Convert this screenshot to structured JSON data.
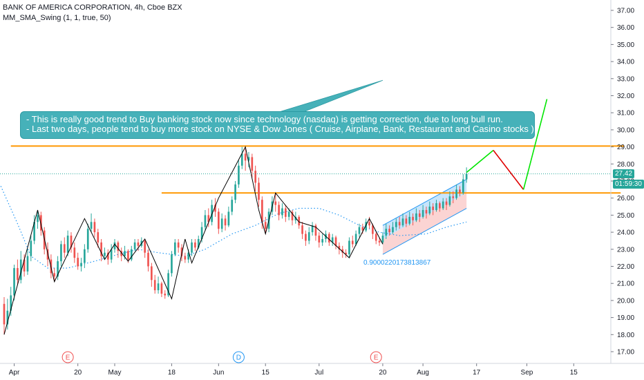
{
  "legend": {
    "title": "BANK OF AMERICA CORPORATION, 4h, Cboe BZX",
    "indicator": "MM_SMA_Swing (1, 1, true, 50)"
  },
  "annotation": {
    "line1": "- This is really good trend to Buy banking stock now since technology (nasdaq) is getting correction, due to long bull run.",
    "line2": "- Last two days, people tend to buy more stock on NYSE & Dow Jones ( Cruise, Airplane, Bank, Restaurant and Casino stocks )"
  },
  "price_tag": {
    "price": "27.42",
    "countdown": "01:59:30"
  },
  "low_label": "0.9000220173813867",
  "events": [
    {
      "letter": "E",
      "x_day": 17,
      "color": "#f05050"
    },
    {
      "letter": "D",
      "x_day": 68,
      "color": "#2196f3"
    },
    {
      "letter": "E",
      "x_day": 109,
      "color": "#f05050"
    }
  ],
  "colors": {
    "up": "#26a69a",
    "down": "#ef5350",
    "level": "#ff9800",
    "sma": "#2196f3",
    "zigzag": "#000000",
    "forecast_up": "#00e600",
    "forecast_down": "#e00000",
    "price_line": "#26a69a"
  },
  "chart_data": {
    "type": "candlestick",
    "title": "BANK OF AMERICA CORPORATION, 4h, Cboe BZX",
    "xlabel": "",
    "ylabel": "",
    "ylim": [
      16.3,
      37.6
    ],
    "x_day_range": [
      -3,
      137
    ],
    "x_ticks": [
      {
        "label": "Apr",
        "day": 1
      },
      {
        "label": "20",
        "day": 20
      },
      {
        "label": "May",
        "day": 31
      },
      {
        "label": "18",
        "day": 48
      },
      {
        "label": "Jun",
        "day": 62
      },
      {
        "label": "15",
        "day": 76
      },
      {
        "label": "Jul",
        "day": 92
      },
      {
        "label": "20",
        "day": 111
      },
      {
        "label": "Aug",
        "day": 123
      },
      {
        "label": "17",
        "day": 139
      },
      {
        "label": "Sep",
        "day": 154
      },
      {
        "label": "15",
        "day": 168
      }
    ],
    "y_ticks": [
      17,
      18,
      19,
      20,
      21,
      22,
      23,
      24,
      25,
      26,
      27,
      28,
      29,
      30,
      31,
      32,
      33,
      34,
      35,
      36,
      37
    ],
    "grid": false,
    "zigzag": [
      {
        "day": -2,
        "price": 18.0
      },
      {
        "day": 8,
        "price": 25.3
      },
      {
        "day": 13,
        "price": 21.1
      },
      {
        "day": 22,
        "price": 24.8
      },
      {
        "day": 28,
        "price": 22.4
      },
      {
        "day": 31,
        "price": 23.3
      },
      {
        "day": 35,
        "price": 22.3
      },
      {
        "day": 40,
        "price": 23.6
      },
      {
        "day": 48,
        "price": 20.1
      },
      {
        "day": 52,
        "price": 23.6
      },
      {
        "day": 54,
        "price": 22.2
      },
      {
        "day": 62,
        "price": 26.0
      },
      {
        "day": 70,
        "price": 29.0
      },
      {
        "day": 74,
        "price": 25.3
      },
      {
        "day": 76,
        "price": 23.9
      },
      {
        "day": 79,
        "price": 26.3
      },
      {
        "day": 86,
        "price": 24.6
      },
      {
        "day": 91,
        "price": 24.3
      },
      {
        "day": 101,
        "price": 22.5
      },
      {
        "day": 107,
        "price": 24.8
      },
      {
        "day": 111,
        "price": 23.3
      }
    ],
    "sma": [
      {
        "day": -3,
        "price": 26.7
      },
      {
        "day": 2,
        "price": 24.5
      },
      {
        "day": 6,
        "price": 22.6
      },
      {
        "day": 11,
        "price": 21.9
      },
      {
        "day": 17,
        "price": 21.9
      },
      {
        "day": 25,
        "price": 22.3
      },
      {
        "day": 32,
        "price": 22.7
      },
      {
        "day": 38,
        "price": 23.0
      },
      {
        "day": 44,
        "price": 22.8
      },
      {
        "day": 52,
        "price": 22.6
      },
      {
        "day": 58,
        "price": 23.0
      },
      {
        "day": 66,
        "price": 23.9
      },
      {
        "day": 73,
        "price": 24.4
      },
      {
        "day": 80,
        "price": 25.1
      },
      {
        "day": 86,
        "price": 25.4
      },
      {
        "day": 92,
        "price": 25.4
      },
      {
        "day": 98,
        "price": 25.0
      },
      {
        "day": 104,
        "price": 24.4
      },
      {
        "day": 110,
        "price": 24.0
      },
      {
        "day": 116,
        "price": 23.8
      },
      {
        "day": 124,
        "price": 23.9
      },
      {
        "day": 130,
        "price": 24.3
      },
      {
        "day": 136,
        "price": 24.6
      }
    ],
    "levels": [
      {
        "price": 29.05,
        "day_start": 0,
        "day_end": 183
      },
      {
        "price": 26.3,
        "day_start": 45,
        "day_end": 182
      }
    ],
    "current_price": 27.42,
    "channel": {
      "upper_start": {
        "day": 111,
        "price": 24.4
      },
      "upper_end": {
        "day": 136,
        "price": 27.1
      },
      "mid_start": {
        "day": 111,
        "price": 23.6
      },
      "mid_end": {
        "day": 136,
        "price": 26.3
      },
      "lower_start": {
        "day": 111,
        "price": 22.7
      },
      "lower_end": {
        "day": 136,
        "price": 25.4
      }
    },
    "trend_line": {
      "start": {
        "day": 81,
        "price": 31.0
      },
      "end": {
        "day": 111,
        "price": 32.9
      }
    },
    "forecast": [
      {
        "day": 136,
        "price": 27.5
      },
      {
        "day": 144,
        "price": 28.8
      },
      {
        "day": 153,
        "price": 26.5
      },
      {
        "day": 160,
        "price": 31.8
      }
    ],
    "candles": [
      [
        -2,
        19.8,
        18.6,
        20.2,
        18.0
      ],
      [
        -1,
        18.6,
        19.4,
        20.1,
        18.3
      ],
      [
        0,
        19.4,
        20.3,
        20.8,
        19.1
      ],
      [
        1,
        20.3,
        21.9,
        22.1,
        20.0
      ],
      [
        2,
        21.9,
        21.2,
        22.4,
        20.9
      ],
      [
        3,
        21.2,
        22.4,
        22.9,
        21.0
      ],
      [
        4,
        22.4,
        21.7,
        22.7,
        21.4
      ],
      [
        5,
        21.7,
        22.6,
        23.0,
        21.5
      ],
      [
        6,
        22.6,
        23.5,
        23.8,
        22.3
      ],
      [
        7,
        23.5,
        24.6,
        25.0,
        23.3
      ],
      [
        8,
        24.6,
        25.0,
        25.3,
        24.2
      ],
      [
        9,
        25.0,
        24.1,
        25.2,
        23.8
      ],
      [
        10,
        24.1,
        23.0,
        24.3,
        22.7
      ],
      [
        11,
        23.0,
        22.4,
        23.4,
        22.0
      ],
      [
        12,
        22.4,
        21.6,
        22.7,
        21.3
      ],
      [
        13,
        21.6,
        21.4,
        21.9,
        21.1
      ],
      [
        14,
        21.4,
        22.3,
        22.6,
        21.2
      ],
      [
        15,
        22.3,
        23.3,
        23.5,
        22.0
      ],
      [
        16,
        23.3,
        22.8,
        23.7,
        22.5
      ],
      [
        17,
        22.8,
        23.8,
        24.1,
        22.6
      ],
      [
        18,
        23.8,
        23.1,
        24.0,
        22.8
      ],
      [
        19,
        23.1,
        22.5,
        23.4,
        22.2
      ],
      [
        20,
        22.5,
        22.0,
        22.8,
        21.8
      ],
      [
        21,
        22.0,
        22.2,
        22.5,
        21.7
      ],
      [
        22,
        22.2,
        23.0,
        23.3,
        21.9
      ],
      [
        23,
        23.0,
        24.2,
        24.5,
        22.8
      ],
      [
        24,
        24.2,
        24.6,
        25.1,
        24.0
      ],
      [
        25,
        24.6,
        24.0,
        24.8,
        23.7
      ],
      [
        26,
        24.0,
        23.4,
        24.2,
        23.1
      ],
      [
        27,
        23.4,
        22.6,
        23.6,
        22.3
      ],
      [
        28,
        22.6,
        22.8,
        23.1,
        22.4
      ],
      [
        29,
        22.8,
        22.4,
        23.0,
        22.1
      ],
      [
        30,
        22.4,
        23.0,
        23.3,
        22.2
      ],
      [
        31,
        23.0,
        23.4,
        23.6,
        22.8
      ],
      [
        32,
        23.4,
        22.9,
        23.5,
        22.5
      ],
      [
        33,
        22.9,
        22.6,
        23.1,
        22.3
      ],
      [
        34,
        22.6,
        22.9,
        23.2,
        22.4
      ],
      [
        35,
        22.9,
        22.4,
        23.0,
        22.2
      ],
      [
        36,
        22.4,
        23.0,
        23.2,
        22.3
      ],
      [
        37,
        23.0,
        23.4,
        23.6,
        22.9
      ],
      [
        38,
        23.4,
        23.2,
        23.6,
        22.9
      ],
      [
        39,
        23.2,
        23.5,
        23.7,
        23.1
      ],
      [
        40,
        23.5,
        22.8,
        23.6,
        22.5
      ],
      [
        41,
        22.8,
        22.0,
        23.0,
        21.7
      ],
      [
        42,
        22.0,
        21.2,
        22.2,
        20.8
      ],
      [
        43,
        21.2,
        20.6,
        21.5,
        20.4
      ],
      [
        44,
        20.6,
        21.0,
        21.4,
        20.4
      ],
      [
        45,
        21.0,
        20.4,
        21.1,
        20.2
      ],
      [
        46,
        20.4,
        20.3,
        20.6,
        20.1
      ],
      [
        47,
        20.3,
        21.6,
        21.8,
        20.2
      ],
      [
        48,
        21.6,
        22.7,
        22.9,
        21.4
      ],
      [
        49,
        22.7,
        23.4,
        23.6,
        22.6
      ],
      [
        50,
        23.4,
        23.1,
        23.6,
        22.8
      ],
      [
        51,
        23.1,
        22.6,
        23.3,
        22.3
      ],
      [
        52,
        22.6,
        22.4,
        22.8,
        22.2
      ],
      [
        53,
        22.4,
        22.8,
        23.0,
        22.2
      ],
      [
        54,
        22.8,
        23.4,
        23.6,
        22.6
      ],
      [
        55,
        23.4,
        23.1,
        23.6,
        22.9
      ],
      [
        56,
        23.1,
        23.6,
        23.8,
        23.0
      ],
      [
        57,
        23.6,
        24.3,
        24.6,
        23.4
      ],
      [
        58,
        24.3,
        25.0,
        25.3,
        24.1
      ],
      [
        59,
        25.0,
        24.6,
        25.4,
        24.3
      ],
      [
        60,
        24.6,
        25.6,
        25.9,
        24.4
      ],
      [
        61,
        25.6,
        25.2,
        26.0,
        24.9
      ],
      [
        62,
        25.2,
        24.2,
        25.4,
        23.9
      ],
      [
        63,
        24.2,
        24.8,
        25.1,
        24.0
      ],
      [
        64,
        24.8,
        24.4,
        25.0,
        24.1
      ],
      [
        65,
        24.4,
        25.2,
        25.5,
        24.3
      ],
      [
        66,
        25.2,
        25.9,
        26.1,
        25.0
      ],
      [
        67,
        25.9,
        26.8,
        27.0,
        25.7
      ],
      [
        68,
        26.8,
        27.9,
        28.2,
        26.6
      ],
      [
        69,
        27.9,
        28.6,
        29.0,
        27.7
      ],
      [
        70,
        28.6,
        28.2,
        28.9,
        27.6
      ],
      [
        71,
        28.2,
        28.4,
        28.7,
        27.8
      ],
      [
        72,
        28.4,
        27.6,
        28.6,
        27.2
      ],
      [
        73,
        27.6,
        26.9,
        27.9,
        26.4
      ],
      [
        74,
        26.9,
        25.9,
        27.2,
        25.5
      ],
      [
        75,
        25.9,
        24.6,
        26.1,
        24.2
      ],
      [
        76,
        24.6,
        24.2,
        24.9,
        23.9
      ],
      [
        77,
        24.2,
        25.2,
        25.4,
        24.0
      ],
      [
        78,
        25.2,
        25.8,
        26.1,
        25.0
      ],
      [
        79,
        25.8,
        25.6,
        26.3,
        25.2
      ],
      [
        80,
        25.6,
        25.0,
        25.8,
        24.7
      ],
      [
        81,
        25.0,
        25.4,
        25.7,
        24.8
      ],
      [
        82,
        25.4,
        24.9,
        25.6,
        24.6
      ],
      [
        83,
        24.9,
        25.2,
        25.4,
        24.7
      ],
      [
        84,
        25.2,
        24.7,
        25.3,
        24.4
      ],
      [
        85,
        24.7,
        24.9,
        25.2,
        24.5
      ],
      [
        86,
        24.9,
        24.4,
        25.0,
        24.2
      ],
      [
        87,
        24.4,
        23.9,
        24.6,
        23.6
      ],
      [
        88,
        23.9,
        23.5,
        24.1,
        23.2
      ],
      [
        89,
        23.5,
        24.0,
        24.3,
        23.3
      ],
      [
        90,
        24.0,
        24.4,
        24.6,
        23.8
      ],
      [
        91,
        24.4,
        23.8,
        24.5,
        23.5
      ],
      [
        92,
        23.8,
        23.4,
        24.0,
        23.1
      ],
      [
        93,
        23.4,
        23.6,
        23.9,
        23.2
      ],
      [
        94,
        23.6,
        23.9,
        24.1,
        23.4
      ],
      [
        95,
        23.9,
        23.4,
        24.0,
        23.2
      ],
      [
        96,
        23.4,
        23.7,
        23.9,
        23.2
      ],
      [
        97,
        23.7,
        23.2,
        23.8,
        23.0
      ],
      [
        98,
        23.2,
        23.0,
        23.4,
        22.7
      ],
      [
        99,
        23.0,
        22.8,
        23.2,
        22.5
      ],
      [
        100,
        22.8,
        22.7,
        23.0,
        22.5
      ],
      [
        101,
        22.7,
        23.5,
        23.7,
        22.5
      ],
      [
        102,
        23.5,
        23.3,
        23.8,
        23.1
      ],
      [
        103,
        23.3,
        23.9,
        24.1,
        23.2
      ],
      [
        104,
        23.9,
        24.3,
        24.5,
        23.7
      ],
      [
        105,
        24.3,
        24.1,
        24.5,
        23.9
      ],
      [
        106,
        24.1,
        24.6,
        24.8,
        24.0
      ],
      [
        107,
        24.6,
        24.4,
        24.9,
        24.2
      ],
      [
        108,
        24.4,
        23.9,
        24.5,
        23.6
      ],
      [
        109,
        23.9,
        23.5,
        24.0,
        23.3
      ],
      [
        110,
        23.5,
        23.4,
        23.7,
        23.2
      ],
      [
        111,
        23.4,
        23.8,
        24.0,
        23.3
      ],
      [
        112,
        23.8,
        24.2,
        24.5,
        23.6
      ],
      [
        113,
        24.2,
        24.0,
        24.4,
        23.8
      ],
      [
        114,
        24.0,
        24.3,
        24.6,
        23.9
      ],
      [
        115,
        24.3,
        24.6,
        24.8,
        24.1
      ],
      [
        116,
        24.6,
        24.4,
        24.9,
        24.2
      ],
      [
        117,
        24.4,
        24.8,
        25.1,
        24.3
      ],
      [
        118,
        24.8,
        24.5,
        25.0,
        24.3
      ],
      [
        119,
        24.5,
        24.9,
        25.2,
        24.4
      ],
      [
        120,
        24.9,
        24.7,
        25.1,
        24.4
      ],
      [
        121,
        24.7,
        25.1,
        25.4,
        24.6
      ],
      [
        122,
        25.1,
        24.9,
        25.3,
        24.6
      ],
      [
        123,
        24.9,
        25.3,
        25.6,
        24.8
      ],
      [
        124,
        25.3,
        25.1,
        25.5,
        24.8
      ],
      [
        125,
        25.1,
        25.5,
        25.8,
        25.0
      ],
      [
        126,
        25.5,
        25.3,
        25.7,
        25.0
      ],
      [
        127,
        25.3,
        25.7,
        25.9,
        25.2
      ],
      [
        128,
        25.7,
        25.4,
        25.8,
        25.2
      ],
      [
        129,
        25.4,
        25.8,
        26.0,
        25.3
      ],
      [
        130,
        25.8,
        25.6,
        26.0,
        25.3
      ],
      [
        131,
        25.6,
        26.1,
        26.4,
        25.5
      ],
      [
        132,
        26.1,
        26.0,
        26.4,
        25.7
      ],
      [
        133,
        26.0,
        26.5,
        26.8,
        25.9
      ],
      [
        134,
        26.5,
        26.3,
        26.7,
        26.1
      ],
      [
        135,
        26.3,
        27.1,
        27.4,
        26.2
      ],
      [
        136,
        27.1,
        27.42,
        27.8,
        26.9
      ]
    ]
  }
}
